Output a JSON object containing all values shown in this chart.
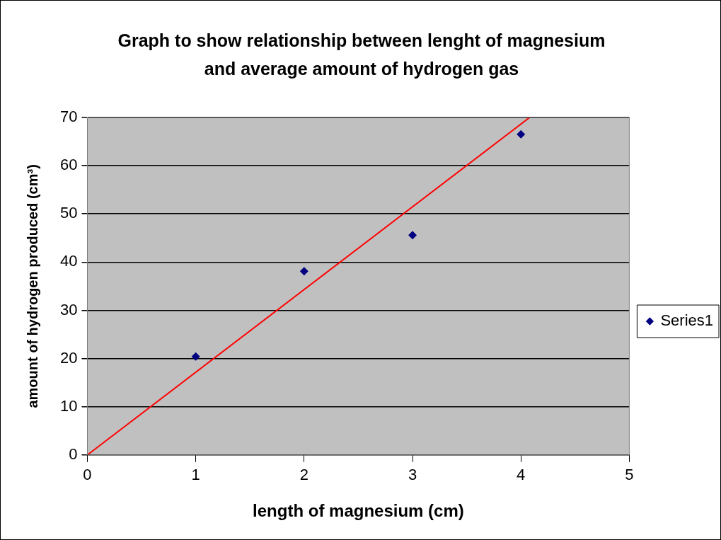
{
  "chart_data": {
    "type": "scatter",
    "title": "Graph to show relationship between lenght of magnesium and average amount of hydrogen gas",
    "xlabel": "length of magnesium (cm)",
    "ylabel": "amount of hydrogen produced (cm³)",
    "x": [
      1,
      2,
      3,
      4
    ],
    "series": [
      {
        "name": "Series1",
        "color": "#000080",
        "values": [
          20.4,
          38.1,
          45.6,
          66.5
        ],
        "marker": "diamond"
      },
      {
        "type": "line",
        "color": "#ff0000",
        "x": [
          0,
          4.08
        ],
        "values": [
          0,
          70
        ],
        "marker": "none",
        "line_style": "solid"
      }
    ],
    "xlim": [
      0,
      5
    ],
    "xticks": [
      0,
      1,
      2,
      3,
      4,
      5
    ],
    "ylim": [
      0,
      70
    ],
    "yticks": [
      0,
      10,
      20,
      30,
      40,
      50,
      60,
      70
    ],
    "grid": "y",
    "legend": "right"
  }
}
